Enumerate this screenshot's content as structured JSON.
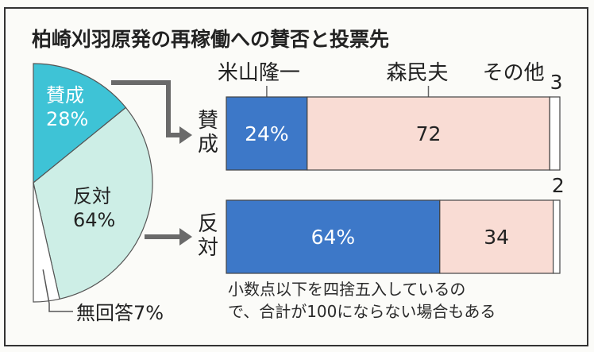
{
  "title": "柏崎刈羽原発の再稼働への賛否と投票先",
  "colors": {
    "support_slice": "#3ec3d6",
    "oppose_slice": "#cdeee6",
    "none_slice": "#ffffff",
    "yoneyama": "#3d78c8",
    "mori": "#f9dcd4",
    "other": "#ffffff",
    "text": "#222222",
    "frame": "#333333"
  },
  "chart_data": [
    {
      "type": "pie",
      "slices": [
        {
          "label": "賛成",
          "value": 28,
          "value_label": "28%"
        },
        {
          "label": "反対",
          "value": 64,
          "value_label": "64%"
        },
        {
          "label": "無回答",
          "value": 7,
          "value_label": "無回答7%"
        }
      ]
    },
    {
      "type": "bar",
      "orientation": "horizontal",
      "stacked": true,
      "series_names": [
        "米山隆一",
        "森民夫",
        "その他"
      ],
      "rows": [
        {
          "label": "賛成",
          "values": [
            24,
            72,
            3
          ],
          "value_labels": [
            "24%",
            "72",
            "3"
          ]
        },
        {
          "label": "反対",
          "values": [
            64,
            34,
            2
          ],
          "value_labels": [
            "64%",
            "34",
            "2"
          ]
        }
      ]
    }
  ],
  "note": {
    "line1": "小数点以下を四捨五入しているの",
    "line2": "で、合計が100にならない場合もある"
  }
}
